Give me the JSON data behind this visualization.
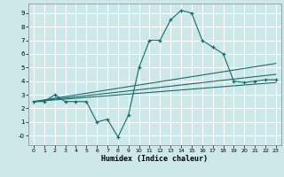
{
  "xlabel": "Humidex (Indice chaleur)",
  "bg_color": "#cce8e8",
  "grid_color": "#ffffff",
  "line_color": "#1a6b6b",
  "xlim": [
    -0.5,
    23.5
  ],
  "ylim": [
    -0.7,
    9.7
  ],
  "xticks": [
    0,
    1,
    2,
    3,
    4,
    5,
    6,
    7,
    8,
    9,
    10,
    11,
    12,
    13,
    14,
    15,
    16,
    17,
    18,
    19,
    20,
    21,
    22,
    23
  ],
  "yticks": [
    0,
    1,
    2,
    3,
    4,
    5,
    6,
    7,
    8,
    9
  ],
  "ytick_labels": [
    "-0",
    "1",
    "2",
    "3",
    "4",
    "5",
    "6",
    "7",
    "8",
    "9"
  ],
  "main_x": [
    0,
    1,
    2,
    3,
    4,
    5,
    6,
    7,
    8,
    9,
    10,
    11,
    12,
    13,
    14,
    15,
    16,
    17,
    18,
    19,
    20,
    21,
    22,
    23
  ],
  "main_y": [
    2.5,
    2.5,
    3.0,
    2.5,
    2.5,
    2.5,
    1.0,
    1.2,
    -0.1,
    1.5,
    5.0,
    7.0,
    7.0,
    8.5,
    9.2,
    9.0,
    7.0,
    6.5,
    6.0,
    4.0,
    3.9,
    4.0,
    4.1,
    4.1
  ],
  "trend_lines": [
    {
      "x": [
        0,
        23
      ],
      "y": [
        2.5,
        3.9
      ]
    },
    {
      "x": [
        0,
        23
      ],
      "y": [
        2.5,
        4.5
      ]
    },
    {
      "x": [
        0,
        23
      ],
      "y": [
        2.5,
        5.3
      ]
    }
  ]
}
